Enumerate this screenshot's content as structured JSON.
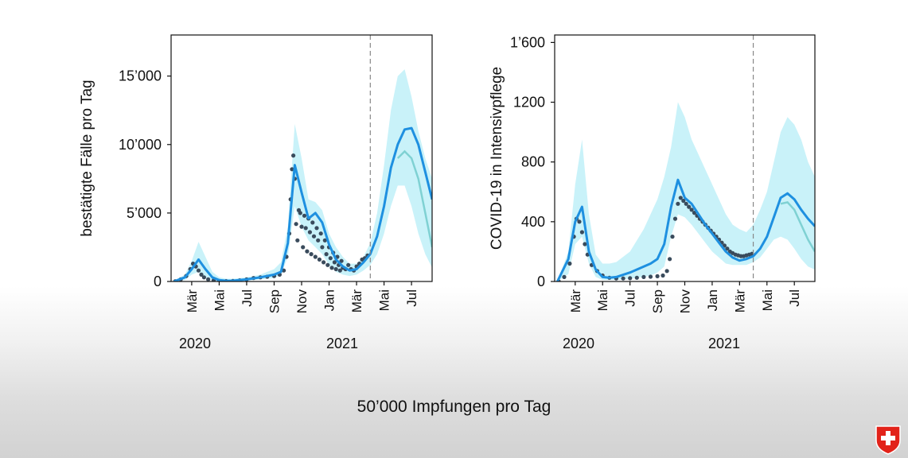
{
  "footer": {
    "caption": "50’000 Impfungen pro Tag"
  },
  "colors": {
    "band": "#bff0f8",
    "line": "#1e90e0",
    "projection": "#7fd1d3",
    "dots": "#3a4b5c",
    "cutoff": "#888888",
    "logo_red": "#e2231a"
  },
  "chart_data": [
    {
      "type": "line",
      "ylabel": "bestätigte Fälle pro Tag",
      "x_ticks": [
        "Mär",
        "Mai",
        "Jul",
        "Sep",
        "Nov",
        "Jan",
        "Mär",
        "Mai",
        "Jul"
      ],
      "x_years": [
        "2020",
        "2021"
      ],
      "y_ticks": [
        "0",
        "5’000",
        "10’000",
        "15’000"
      ],
      "y_tick_values": [
        0,
        5000,
        10000,
        15000
      ],
      "ylim": [
        0,
        18000
      ],
      "xlim_months": [
        1.5,
        20.5
      ],
      "cutoff_month": 16.0,
      "series": [
        {
          "kind": "band",
          "x": [
            1.7,
            2.5,
            3.0,
            3.5,
            4.0,
            4.5,
            5.0,
            5.5,
            6.0,
            7.0,
            8.0,
            8.5,
            9.0,
            9.5,
            10.0,
            10.5,
            11.0,
            11.5,
            12.0,
            12.5,
            13.0,
            13.5,
            14.0,
            14.5,
            15.0,
            15.5,
            16.0,
            16.5,
            17.0,
            17.5,
            18.0,
            18.5,
            19.0,
            19.5,
            20.0,
            20.5
          ],
          "upper": [
            50,
            500,
            1500,
            2900,
            1800,
            700,
            300,
            200,
            200,
            300,
            500,
            700,
            900,
            1400,
            4000,
            11500,
            9000,
            6000,
            5800,
            5200,
            3500,
            2500,
            1800,
            1300,
            1300,
            1800,
            2800,
            5000,
            8500,
            12500,
            15000,
            15500,
            13500,
            11000,
            9000,
            7500
          ],
          "lower": [
            0,
            100,
            500,
            700,
            300,
            80,
            20,
            10,
            20,
            60,
            150,
            200,
            250,
            500,
            1800,
            5500,
            4000,
            3000,
            2500,
            2000,
            1200,
            700,
            500,
            400,
            500,
            800,
            1200,
            2000,
            3500,
            5500,
            7000,
            7000,
            5500,
            3500,
            2000,
            1000
          ]
        },
        {
          "kind": "line",
          "x": [
            1.7,
            2.5,
            3.0,
            3.5,
            4.0,
            4.5,
            5.0,
            5.5,
            6.0,
            7.0,
            8.0,
            8.5,
            9.0,
            9.5,
            10.0,
            10.5,
            11.0,
            11.5,
            12.0,
            12.5,
            13.0,
            13.5,
            14.0,
            14.5,
            15.0,
            15.5,
            16.0,
            16.5,
            17.0,
            17.5,
            18.0,
            18.5,
            19.0,
            19.5,
            20.0,
            20.5
          ],
          "y": [
            0,
            300,
            900,
            1600,
            900,
            300,
            100,
            50,
            60,
            150,
            300,
            400,
            500,
            700,
            2800,
            8500,
            6500,
            4600,
            5000,
            4300,
            2700,
            1600,
            1100,
            800,
            900,
            1400,
            2000,
            3300,
            5500,
            8300,
            10000,
            11100,
            11200,
            10000,
            8000,
            6000
          ]
        },
        {
          "kind": "projection",
          "x": [
            18.0,
            18.5,
            19.0,
            19.5,
            20.0,
            20.5
          ],
          "y": [
            9000,
            9500,
            9000,
            7500,
            5000,
            2500
          ]
        },
        {
          "kind": "dots",
          "x": [
            1.8,
            2.2,
            2.6,
            2.9,
            3.1,
            3.3,
            3.5,
            3.7,
            3.9,
            4.2,
            4.6,
            5.0,
            5.5,
            6.0,
            6.5,
            7.0,
            7.5,
            8.0,
            8.5,
            9.0,
            9.4,
            9.7,
            9.9,
            10.1,
            10.2,
            10.3,
            10.4,
            10.5,
            10.6,
            10.7,
            10.8,
            10.9,
            11.0,
            11.1,
            11.2,
            11.3,
            11.4,
            11.5,
            11.6,
            11.7,
            11.8,
            11.9,
            12.0,
            12.1,
            12.2,
            12.3,
            12.4,
            12.5,
            12.6,
            12.7,
            12.8,
            12.9,
            13.0,
            13.1,
            13.2,
            13.3,
            13.4,
            13.5,
            13.6,
            13.7,
            13.8,
            13.9,
            14.0,
            14.2,
            14.4,
            14.6,
            14.8,
            15.0,
            15.2,
            15.4,
            15.6,
            15.8
          ],
          "y": [
            20,
            150,
            400,
            900,
            1300,
            1100,
            800,
            500,
            300,
            150,
            80,
            40,
            30,
            40,
            80,
            150,
            250,
            300,
            350,
            400,
            500,
            800,
            1800,
            3500,
            6000,
            8200,
            9200,
            7500,
            4200,
            3000,
            5200,
            5000,
            4000,
            2500,
            4800,
            3900,
            2200,
            4600,
            3600,
            2000,
            4300,
            3300,
            1800,
            3900,
            3000,
            1600,
            3500,
            2500,
            1400,
            3000,
            2000,
            1200,
            2500,
            1700,
            1000,
            2100,
            1400,
            900,
            1800,
            1200,
            800,
            1500,
            1000,
            900,
            1200,
            900,
            800,
            1100,
            1300,
            1600,
            1700,
            1900
          ]
        }
      ]
    },
    {
      "type": "line",
      "ylabel": "COVID-19 in Intensivpflege",
      "x_ticks": [
        "Mär",
        "Mai",
        "Jul",
        "Sep",
        "Nov",
        "Jan",
        "Mär",
        "Mai",
        "Jul"
      ],
      "x_years": [
        "2020",
        "2021"
      ],
      "y_ticks": [
        "0",
        "400",
        "800",
        "1200",
        "1’600"
      ],
      "y_tick_values": [
        0,
        400,
        800,
        1200,
        1600
      ],
      "ylim": [
        0,
        1650
      ],
      "xlim_months": [
        1.5,
        20.5
      ],
      "cutoff_month": 16.0,
      "series": [
        {
          "kind": "band",
          "x": [
            1.7,
            2.5,
            3.0,
            3.5,
            4.0,
            4.5,
            5.0,
            5.5,
            6.0,
            7.0,
            8.0,
            8.5,
            9.0,
            9.5,
            10.0,
            10.5,
            11.0,
            11.5,
            12.0,
            12.5,
            13.0,
            13.5,
            14.0,
            14.5,
            15.0,
            15.5,
            16.0,
            16.5,
            17.0,
            17.5,
            18.0,
            18.5,
            19.0,
            19.5,
            20.0,
            20.5
          ],
          "upper": [
            0,
            200,
            650,
            950,
            450,
            180,
            120,
            120,
            130,
            200,
            350,
            450,
            550,
            700,
            900,
            1200,
            1100,
            950,
            850,
            750,
            650,
            550,
            450,
            380,
            350,
            330,
            380,
            480,
            600,
            800,
            1000,
            1100,
            1050,
            950,
            800,
            700
          ],
          "lower": [
            0,
            50,
            250,
            300,
            120,
            30,
            10,
            10,
            10,
            20,
            30,
            40,
            60,
            100,
            300,
            450,
            430,
            380,
            320,
            260,
            200,
            160,
            120,
            110,
            110,
            110,
            130,
            160,
            220,
            280,
            300,
            280,
            220,
            150,
            100,
            80
          ]
        },
        {
          "kind": "line",
          "x": [
            1.7,
            2.5,
            3.0,
            3.5,
            4.0,
            4.5,
            5.0,
            5.5,
            6.0,
            7.0,
            8.0,
            8.5,
            9.0,
            9.5,
            10.0,
            10.5,
            11.0,
            11.5,
            12.0,
            12.5,
            13.0,
            13.5,
            14.0,
            14.5,
            15.0,
            15.5,
            16.0,
            16.5,
            17.0,
            17.5,
            18.0,
            18.5,
            19.0,
            19.5,
            20.0,
            20.5
          ],
          "y": [
            0,
            150,
            400,
            500,
            200,
            80,
            30,
            25,
            30,
            60,
            100,
            120,
            150,
            250,
            500,
            680,
            560,
            520,
            450,
            380,
            320,
            260,
            200,
            160,
            140,
            150,
            170,
            220,
            300,
            430,
            560,
            590,
            550,
            480,
            420,
            370
          ]
        },
        {
          "kind": "projection",
          "x": [
            18.0,
            18.5,
            19.0,
            19.5,
            20.0,
            20.5
          ],
          "y": [
            520,
            530,
            480,
            380,
            280,
            200
          ]
        },
        {
          "kind": "dots",
          "x": [
            1.8,
            2.2,
            2.6,
            2.9,
            3.1,
            3.3,
            3.5,
            3.7,
            3.9,
            4.2,
            4.6,
            5.0,
            5.5,
            6.0,
            6.5,
            7.0,
            7.5,
            8.0,
            8.5,
            9.0,
            9.4,
            9.7,
            9.9,
            10.1,
            10.3,
            10.5,
            10.7,
            10.9,
            11.1,
            11.3,
            11.5,
            11.7,
            11.9,
            12.1,
            12.3,
            12.5,
            12.7,
            12.9,
            13.1,
            13.3,
            13.5,
            13.7,
            13.9,
            14.1,
            14.3,
            14.5,
            14.7,
            14.9,
            15.1,
            15.3,
            15.5,
            15.7,
            15.9
          ],
          "y": [
            0,
            30,
            120,
            300,
            420,
            400,
            330,
            250,
            180,
            110,
            70,
            40,
            25,
            20,
            20,
            22,
            25,
            30,
            32,
            35,
            40,
            70,
            150,
            300,
            420,
            520,
            560,
            540,
            520,
            500,
            480,
            460,
            440,
            420,
            400,
            380,
            360,
            340,
            320,
            300,
            280,
            260,
            240,
            220,
            200,
            190,
            180,
            175,
            170,
            170,
            175,
            180,
            185
          ]
        }
      ]
    }
  ]
}
